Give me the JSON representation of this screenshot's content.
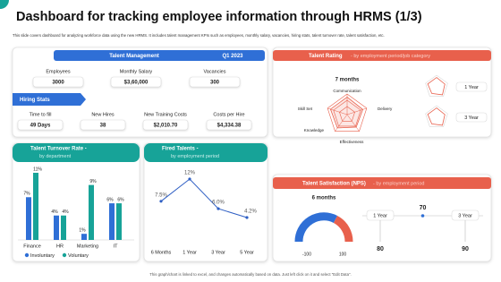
{
  "header": {
    "title": "Dashboard for tracking employee information through HRMS (1/3)",
    "subtitle": "This slide covers dashboard for analyzing workforce data using the new HRMS. It includes talent management KPIs such as employees, monthly salary, vacancies, hiring stats, talent turnover rate, talent satisfaction, etc."
  },
  "talent_management": {
    "title": "Talent Management",
    "period": "Q1 2023",
    "kpis": [
      {
        "label": "Employees",
        "value": "3000"
      },
      {
        "label": "Monthly Salary",
        "value": "$3,60,000"
      },
      {
        "label": "Vacancies",
        "value": "300"
      }
    ],
    "hiring_title": "Hiring Stats",
    "hiring": [
      {
        "label": "Time to fill",
        "value": "49 Days"
      },
      {
        "label": "New Hires",
        "value": "38"
      },
      {
        "label": "New Training Costs",
        "value": "$2,010.70"
      },
      {
        "label": "Costs per Hire",
        "value": "$4,334.38"
      }
    ]
  },
  "talent_rating": {
    "title": "Talent Rating",
    "subtitle": "- by employment period/job category",
    "period": "7 months",
    "axes": [
      "Communication",
      "Delivery",
      "Effectiveness",
      "Knowledge",
      "Skill Set"
    ],
    "periods": [
      "1 Year",
      "3 Year"
    ]
  },
  "chart_data": [
    {
      "type": "bar",
      "title": "Talent Turnover Rate -",
      "subtitle": "by department",
      "categories": [
        "Finance",
        "HR",
        "Marketing",
        "IT"
      ],
      "series": [
        {
          "name": "Involuntary",
          "color": "#2f6fd6",
          "values": [
            7,
            4,
            1,
            6
          ],
          "value_labels": [
            "7%",
            "4%",
            "1%",
            "6%"
          ]
        },
        {
          "name": "Voluntary",
          "color": "#17a398",
          "values": [
            11,
            4,
            9,
            6
          ],
          "value_labels": [
            "11%",
            "4%",
            "9%",
            "6%"
          ]
        }
      ]
    },
    {
      "type": "line",
      "title": "Fired Talents -",
      "subtitle": "by employment period",
      "color": "#2f5fc4",
      "categories": [
        "6 Months",
        "1 Year",
        "3 Year",
        "5 Year"
      ],
      "values": [
        7.5,
        12,
        6.0,
        4.2
      ],
      "value_labels": [
        "7.5%",
        "12%",
        "6.0%",
        "4.2%"
      ]
    }
  ],
  "talent_satisfaction": {
    "title": "Talent Satisfaction (NPS)",
    "subtitle": "- by employment period",
    "period": "6 months",
    "gauge_min": -100,
    "gauge_max": 100,
    "timeline": [
      {
        "label": "1 Year",
        "score": 80
      },
      {
        "score": 70
      },
      {
        "label": "3 Year",
        "score": 90
      }
    ]
  },
  "footer": "This graph/chart is linked to excel, and changes automatically based on data. Just left click on it and select \"Edit Data\"."
}
